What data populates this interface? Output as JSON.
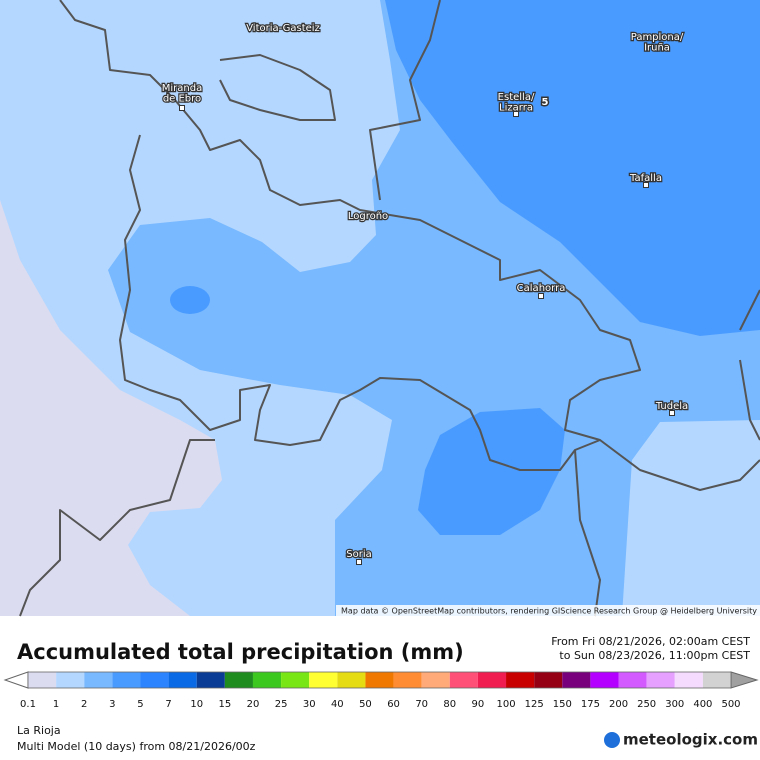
{
  "map": {
    "cities": [
      {
        "lines": [
          "Vitoria-Gasteiz"
        ]
      },
      {
        "lines": [
          "Miranda",
          "de Ebro"
        ]
      },
      {
        "lines": [
          "Estella/",
          "Lizarra"
        ]
      },
      {
        "lines": [
          "Pamplona/",
          "Iruña"
        ]
      },
      {
        "lines": [
          "Tafalla"
        ]
      },
      {
        "lines": [
          "Logroño"
        ]
      },
      {
        "lines": [
          "Calahorra"
        ]
      },
      {
        "lines": [
          "Tudela"
        ]
      },
      {
        "lines": [
          "Soria"
        ]
      }
    ],
    "max_label": "5",
    "attribution": "Map data © OpenStreetMap contributors, rendering GIScience Research Group @ Heidelberg University"
  },
  "footer": {
    "title": "Accumulated total precipitation (mm)",
    "from": "From Fri 08/21/2026, 02:00am CEST",
    "to": "to Sun 08/23/2026, 11:00pm CEST",
    "region": "La Rioja",
    "model": "Multi Model (10 days) from 08/21/2026/00z",
    "logo": "meteologix.com"
  },
  "legend": {
    "ticks": [
      0.1,
      1,
      2,
      3,
      5,
      7,
      10,
      15,
      20,
      25,
      30,
      40,
      50,
      60,
      70,
      80,
      90,
      100,
      125,
      150,
      175,
      200,
      250,
      300,
      400,
      500
    ],
    "colors": [
      "#dcdcf0",
      "#b4d7ff",
      "#78b9ff",
      "#4a9bff",
      "#2c84ff",
      "#0a6ae6",
      "#0a3c96",
      "#1e8c1e",
      "#3cc81e",
      "#78e614",
      "#ffff32",
      "#e6dc14",
      "#f07800",
      "#ff8c32",
      "#ffaa78",
      "#ff5078",
      "#f01e50",
      "#c80000",
      "#960014",
      "#78007d",
      "#b400ff",
      "#d25aff",
      "#e6a0ff",
      "#f5dcff",
      "#d2d2d2"
    ],
    "under_color": "#ffffff",
    "over_color": "#a0a0a0"
  }
}
